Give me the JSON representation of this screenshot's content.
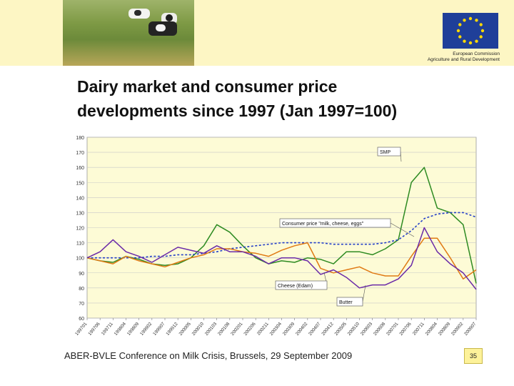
{
  "slide": {
    "title_line1": "Dairy market and consumer price",
    "title_line2": "developments since 1997 (Jan 1997=100)",
    "footer": "ABER-BVLE Conference on Milk Crisis, Brussels, 29 September 2009",
    "page_number": "35",
    "eu_caption_line1": "European Commission",
    "eu_caption_line2": "Agriculture and Rural Development"
  },
  "colors": {
    "header_band": "#fdf6c4",
    "plot_bg": "#fdfbd6",
    "eu_blue": "#1f3f99",
    "eu_star": "#ffd800"
  },
  "chart_data": {
    "type": "line",
    "title": "",
    "xlabel": "",
    "ylabel": "",
    "ylim": [
      60,
      180
    ],
    "yticks": [
      60,
      70,
      80,
      90,
      100,
      110,
      120,
      130,
      140,
      150,
      160,
      170,
      180
    ],
    "grid": "horizontal",
    "x_tick_labels": [
      "199701",
      "199706",
      "199711",
      "199804",
      "199809",
      "199902",
      "199907",
      "199912",
      "200005",
      "200010",
      "200103",
      "200108",
      "200201",
      "200206",
      "200211",
      "200304",
      "200309",
      "200402",
      "200407",
      "200412",
      "200505",
      "200510",
      "200603",
      "200608",
      "200701",
      "200706",
      "200711",
      "200804",
      "200809",
      "200902",
      "200907"
    ],
    "series": [
      {
        "name": "SMP",
        "color": "#2e8b22",
        "style": "solid",
        "values": [
          100,
          98,
          97,
          101,
          99,
          96,
          95,
          96,
          100,
          108,
          122,
          117,
          108,
          100,
          96,
          98,
          97,
          100,
          99,
          96,
          104,
          104,
          102,
          106,
          112,
          150,
          160,
          133,
          130,
          122,
          83
        ]
      },
      {
        "name": "Consumer price \"milk, cheese, eggs\"",
        "color": "#2540c8",
        "style": "dashed",
        "values": [
          100,
          100,
          100,
          100,
          100,
          101,
          101,
          102,
          102,
          103,
          104,
          106,
          107,
          108,
          109,
          110,
          110,
          110,
          110,
          109,
          109,
          109,
          109,
          110,
          112,
          118,
          126,
          129,
          130,
          130,
          127
        ]
      },
      {
        "name": "Cheese (Edam)",
        "color": "#e07a14",
        "style": "solid",
        "values": [
          100,
          98,
          96,
          101,
          98,
          96,
          94,
          97,
          100,
          102,
          106,
          106,
          104,
          103,
          101,
          105,
          108,
          110,
          93,
          90,
          92,
          94,
          90,
          88,
          88,
          101,
          113,
          113,
          100,
          86,
          92
        ]
      },
      {
        "name": "Butter",
        "color": "#6a2aa8",
        "style": "solid",
        "values": [
          100,
          104,
          112,
          104,
          101,
          97,
          102,
          107,
          105,
          103,
          108,
          104,
          104,
          101,
          96,
          100,
          100,
          98,
          89,
          92,
          87,
          80,
          82,
          82,
          86,
          95,
          120,
          104,
          96,
          90,
          79
        ]
      }
    ],
    "annotations": [
      {
        "text": "SMP",
        "series": "SMP"
      },
      {
        "text": "Consumer price \"milk, cheese, eggs\"",
        "series": "Consumer price \"milk, cheese, eggs\""
      },
      {
        "text": "Cheese (Edam)",
        "series": "Cheese (Edam)"
      },
      {
        "text": "Butter",
        "series": "Butter"
      }
    ]
  }
}
